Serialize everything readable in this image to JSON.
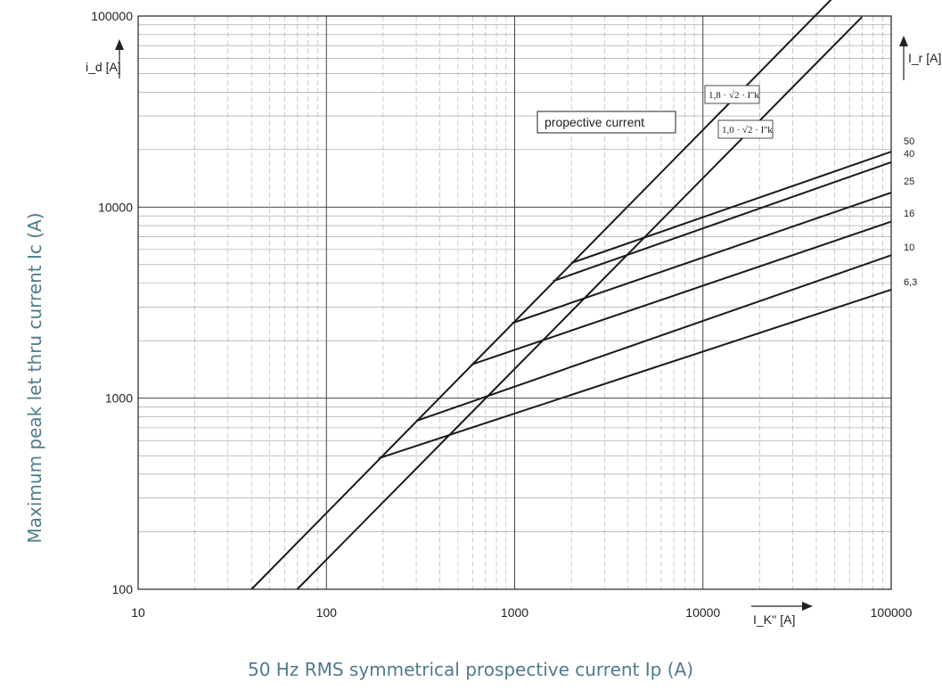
{
  "chart_data": {
    "type": "line",
    "x_scale": "log",
    "y_scale": "log",
    "xlim": [
      10,
      100000
    ],
    "ylim": [
      100,
      100000
    ],
    "x_ticks": [
      "10",
      "100",
      "1000",
      "10000",
      "100000"
    ],
    "y_ticks": [
      "100",
      "1000",
      "10000",
      "100000"
    ],
    "xlabel": "50 Hz RMS symmetrical prospective current Ip (A)",
    "ylabel": "Maximum peak let thru current Ic (A)",
    "inner_y_unit": "i_d [A]",
    "inner_x_unit": "I_K'' [A]",
    "inner_rating_unit": "I_r [A]",
    "prospective_label": "propective current",
    "grid": true,
    "series": [
      {
        "name": "1,8 · √2 · I''k",
        "x": [
          40,
          58000
        ],
        "y": [
          100,
          147600
        ]
      },
      {
        "name": "1,0 · √2 · I''k",
        "x": [
          70,
          70000
        ],
        "y": [
          100,
          99000
        ]
      },
      {
        "name": "50",
        "x": [
          2000,
          100000
        ],
        "y": [
          5100,
          19500
        ]
      },
      {
        "name": "40",
        "x": [
          1600,
          100000
        ],
        "y": [
          4100,
          17200
        ]
      },
      {
        "name": "25",
        "x": [
          970,
          100000
        ],
        "y": [
          2470,
          11900
        ]
      },
      {
        "name": "16",
        "x": [
          590,
          100000
        ],
        "y": [
          1500,
          8400
        ]
      },
      {
        "name": "10",
        "x": [
          300,
          100000
        ],
        "y": [
          760,
          5600
        ]
      },
      {
        "name": "6,3",
        "x": [
          190,
          100000
        ],
        "y": [
          485,
          3700
        ]
      }
    ],
    "annotations": {
      "label_1_8": "1,8 · √2 · I''k",
      "label_1_0": "1,0 · √2 · I''k"
    }
  }
}
